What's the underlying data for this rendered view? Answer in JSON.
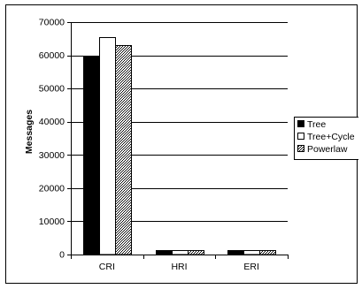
{
  "chart_data": {
    "type": "bar",
    "title": "",
    "xlabel": "",
    "ylabel": "Messages",
    "ylim": [
      0,
      70000
    ],
    "yticks": [
      0,
      10000,
      20000,
      30000,
      40000,
      50000,
      60000,
      70000
    ],
    "grid": "horizontal major gridlines",
    "legend_position": "right",
    "categories": [
      "CRI",
      "HRI",
      "ERI"
    ],
    "series": [
      {
        "name": "Tree",
        "color": "#000000",
        "fill_style": "solid",
        "values": [
          59800,
          1300,
          1300
        ]
      },
      {
        "name": "Tree+Cycle",
        "color": "#ffffff",
        "fill_style": "hollow",
        "values": [
          65500,
          1400,
          1400
        ]
      },
      {
        "name": "Powerlaw",
        "color": "#9a9a9a",
        "fill_style": "crosshatch",
        "values": [
          63200,
          1400,
          1400
        ]
      }
    ]
  }
}
